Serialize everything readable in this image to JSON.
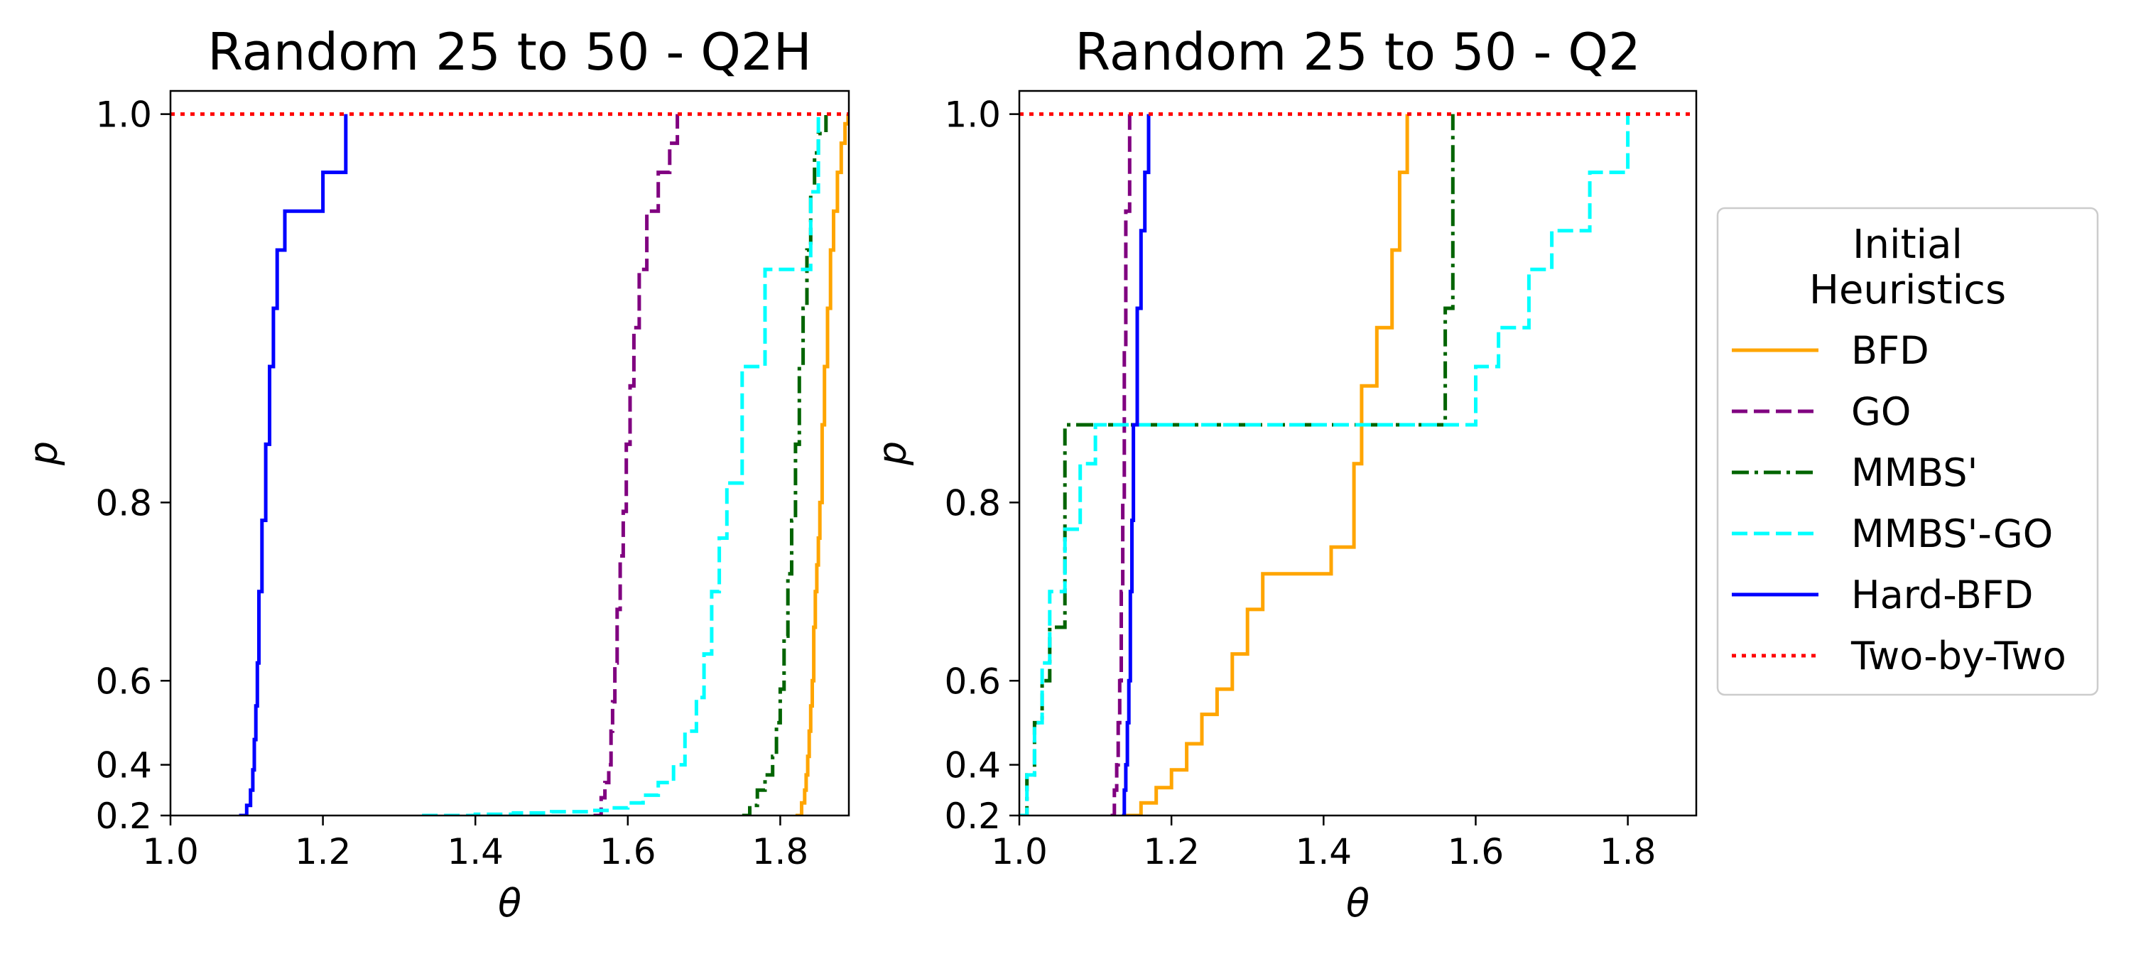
{
  "chart_data": [
    {
      "type": "line",
      "title": "Random 25 to 50 - Q2H",
      "xlabel": "θ",
      "ylabel": "p",
      "xlim": [
        1.0,
        1.89
      ],
      "x_ticks": [
        1.0,
        1.2,
        1.4,
        1.6,
        1.8
      ],
      "x_tick_labels": [
        "1.0",
        "1.2",
        "1.4",
        "1.6",
        "1.8"
      ],
      "y_ticks": [
        0.2,
        0.4,
        0.6,
        0.8,
        1.0
      ],
      "y_tick_labels": [
        "0.2",
        "0.4",
        "0.6",
        "0.8",
        "1.0"
      ],
      "series": [
        {
          "name": "BFD",
          "x": [
            1.82,
            1.828,
            1.832,
            1.834,
            1.836,
            1.838,
            1.84,
            1.842,
            1.844,
            1.846,
            1.848,
            1.85,
            1.852,
            1.855,
            1.858,
            1.862,
            1.866,
            1.87,
            1.875,
            1.88,
            1.885,
            1.889
          ],
          "y": [
            0.2,
            0.25,
            0.3,
            0.36,
            0.42,
            0.48,
            0.54,
            0.6,
            0.66,
            0.7,
            0.73,
            0.76,
            0.8,
            0.84,
            0.87,
            0.9,
            0.93,
            0.95,
            0.97,
            0.985,
            0.995,
            1.0
          ]
        },
        {
          "name": "GO",
          "x": [
            1.555,
            1.565,
            1.57,
            1.575,
            1.578,
            1.58,
            1.583,
            1.586,
            1.59,
            1.594,
            1.598,
            1.603,
            1.608,
            1.615,
            1.625,
            1.64,
            1.655,
            1.665
          ],
          "y": [
            0.2,
            0.27,
            0.33,
            0.4,
            0.48,
            0.55,
            0.62,
            0.68,
            0.74,
            0.79,
            0.83,
            0.86,
            0.89,
            0.92,
            0.95,
            0.97,
            0.985,
            1.0
          ]
        },
        {
          "name": "MMBS'",
          "x": [
            1.75,
            1.76,
            1.77,
            1.78,
            1.79,
            1.795,
            1.8,
            1.805,
            1.81,
            1.815,
            1.82,
            1.825,
            1.83,
            1.835,
            1.84,
            1.845,
            1.85,
            1.86
          ],
          "y": [
            0.2,
            0.24,
            0.3,
            0.36,
            0.42,
            0.5,
            0.58,
            0.65,
            0.72,
            0.78,
            0.83,
            0.87,
            0.9,
            0.93,
            0.96,
            0.98,
            0.99,
            1.0
          ]
        },
        {
          "name": "MMBS'-GO",
          "x": [
            1.33,
            1.4,
            1.45,
            1.5,
            1.55,
            1.58,
            1.6,
            1.62,
            1.64,
            1.66,
            1.675,
            1.69,
            1.7,
            1.71,
            1.72,
            1.73,
            1.75,
            1.78,
            1.84,
            1.85
          ],
          "y": [
            0.2,
            0.205,
            0.21,
            0.215,
            0.22,
            0.23,
            0.25,
            0.28,
            0.33,
            0.4,
            0.48,
            0.56,
            0.63,
            0.7,
            0.76,
            0.81,
            0.87,
            0.92,
            0.96,
            1.0
          ]
        },
        {
          "name": "Hard-BFD",
          "x": [
            1.09,
            1.1,
            1.105,
            1.108,
            1.11,
            1.112,
            1.114,
            1.116,
            1.12,
            1.125,
            1.13,
            1.135,
            1.14,
            1.15,
            1.2,
            1.23
          ],
          "y": [
            0.2,
            0.24,
            0.3,
            0.38,
            0.46,
            0.54,
            0.62,
            0.7,
            0.78,
            0.83,
            0.87,
            0.9,
            0.93,
            0.95,
            0.97,
            1.0
          ]
        },
        {
          "name": "Two-by-Two",
          "x": [
            1.0,
            1.89
          ],
          "y": [
            1.0,
            1.0
          ]
        }
      ]
    },
    {
      "type": "line",
      "title": "Random 25 to 50 - Q2",
      "xlabel": "θ",
      "ylabel": "p",
      "xlim": [
        1.0,
        1.89
      ],
      "x_ticks": [
        1.0,
        1.2,
        1.4,
        1.6,
        1.8
      ],
      "x_tick_labels": [
        "1.0",
        "1.2",
        "1.4",
        "1.6",
        "1.8"
      ],
      "y_ticks": [
        0.2,
        0.4,
        0.6,
        0.8,
        1.0
      ],
      "y_tick_labels": [
        "0.2",
        "0.4",
        "0.6",
        "0.8",
        "1.0"
      ],
      "series": [
        {
          "name": "BFD",
          "x": [
            1.14,
            1.16,
            1.18,
            1.2,
            1.22,
            1.24,
            1.26,
            1.28,
            1.3,
            1.32,
            1.35,
            1.38,
            1.41,
            1.44,
            1.45,
            1.47,
            1.49,
            1.5,
            1.51
          ],
          "y": [
            0.2,
            0.25,
            0.31,
            0.38,
            0.45,
            0.52,
            0.58,
            0.63,
            0.68,
            0.72,
            0.72,
            0.72,
            0.75,
            0.82,
            0.86,
            0.89,
            0.93,
            0.97,
            1.0
          ]
        },
        {
          "name": "GO",
          "x": [
            1.12,
            1.125,
            1.128,
            1.13,
            1.132,
            1.134,
            1.136,
            1.138,
            1.14,
            1.145
          ],
          "y": [
            0.2,
            0.3,
            0.4,
            0.5,
            0.6,
            0.7,
            0.8,
            0.88,
            0.95,
            1.0
          ]
        },
        {
          "name": "MMBS'",
          "x": [
            1.0,
            1.01,
            1.02,
            1.03,
            1.04,
            1.06,
            1.1,
            1.3,
            1.5,
            1.55,
            1.56,
            1.57
          ],
          "y": [
            0.2,
            0.36,
            0.5,
            0.6,
            0.66,
            0.84,
            0.84,
            0.84,
            0.84,
            0.84,
            0.9,
            1.0
          ]
        },
        {
          "name": "MMBS'-GO",
          "x": [
            1.0,
            1.01,
            1.02,
            1.03,
            1.04,
            1.06,
            1.08,
            1.1,
            1.3,
            1.5,
            1.57,
            1.6,
            1.63,
            1.67,
            1.7,
            1.75,
            1.8
          ],
          "y": [
            0.2,
            0.36,
            0.5,
            0.62,
            0.7,
            0.77,
            0.82,
            0.84,
            0.84,
            0.84,
            0.84,
            0.87,
            0.89,
            0.92,
            0.94,
            0.97,
            1.0
          ]
        },
        {
          "name": "Hard-BFD",
          "x": [
            1.135,
            1.138,
            1.14,
            1.142,
            1.144,
            1.146,
            1.148,
            1.15,
            1.155,
            1.16,
            1.165,
            1.17
          ],
          "y": [
            0.2,
            0.3,
            0.4,
            0.5,
            0.6,
            0.7,
            0.78,
            0.84,
            0.9,
            0.94,
            0.97,
            1.0
          ]
        },
        {
          "name": "Two-by-Two",
          "x": [
            1.0,
            1.89
          ],
          "y": [
            1.0,
            1.0
          ]
        }
      ]
    }
  ],
  "legend": {
    "title_line1": "Initial",
    "title_line2": "Heuristics",
    "entries": [
      "BFD",
      "GO",
      "MMBS'",
      "MMBS'-GO",
      "Hard-BFD",
      "Two-by-Two"
    ]
  },
  "colors": {
    "BFD": "#FFA500",
    "GO": "#800080",
    "MMBS'": "#006400",
    "MMBS'-GO": "#00FFFF",
    "Hard-BFD": "#0000FF",
    "Two-by-Two": "#FF0000"
  },
  "dash_styles": {
    "BFD": "solid",
    "GO": "dashed",
    "MMBS'": "dashdot",
    "MMBS'-GO": "dashed",
    "Hard-BFD": "solid",
    "Two-by-Two": "dotted"
  }
}
